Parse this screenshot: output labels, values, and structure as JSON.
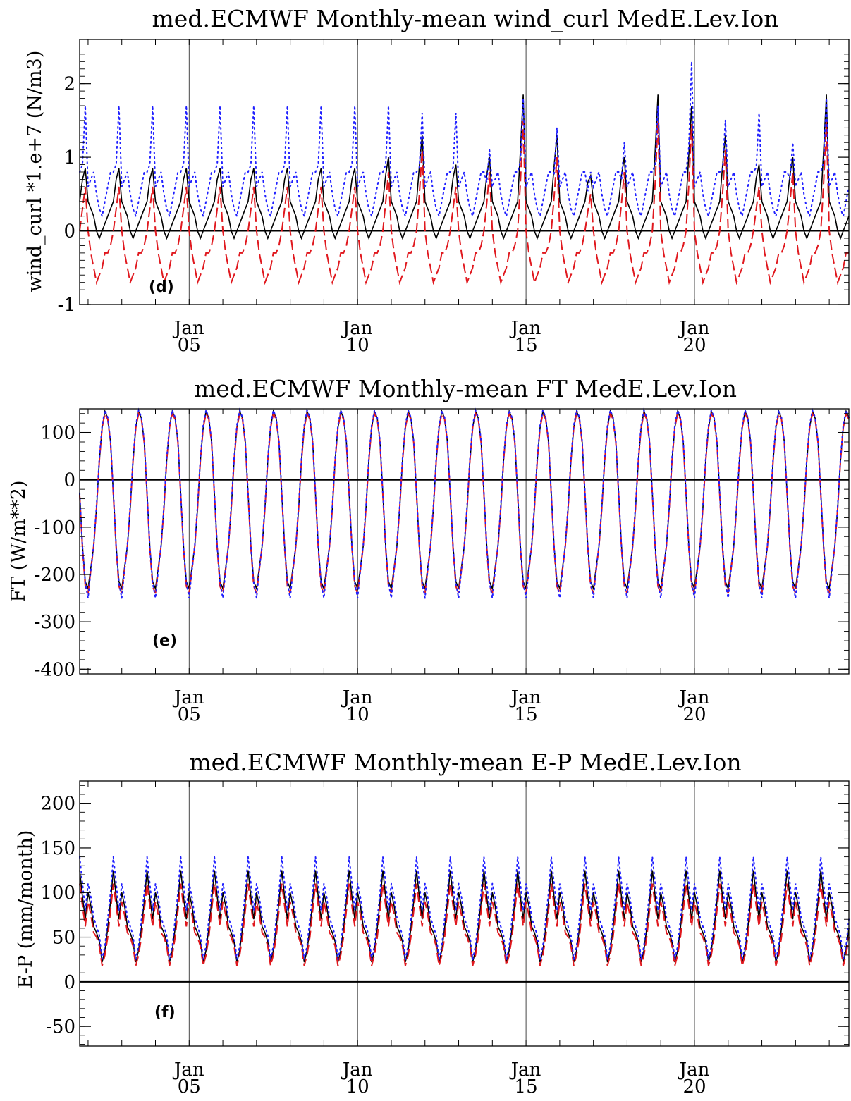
{
  "colors": {
    "black": "#000000",
    "red": "#e0181e",
    "blue": "#1f1fff"
  },
  "chart_data": [
    {
      "type": "line",
      "title": "med.ECMWF Monthly-mean wind_curl  MedE.Lev.Ion",
      "xlabel": "",
      "ylabel": "wind_curl *1.e+7 (N/m3)",
      "panel_label": "(d)",
      "x_range": [
        "2001-10",
        "2024-08"
      ],
      "ylim": [
        -1,
        2.6
      ],
      "y_ticks": [
        -1,
        0,
        1,
        2
      ],
      "y_tick_labels": [
        "-1",
        "0",
        "1",
        "2"
      ],
      "y_minor_step": 0.1,
      "x_tick_labels": [
        {
          "month": "Jan",
          "year": "05"
        },
        {
          "month": "Jan",
          "year": "10"
        },
        {
          "month": "Jan",
          "year": "15"
        },
        {
          "month": "Jan",
          "year": "20"
        }
      ],
      "zero_line": true,
      "series": [
        {
          "style": "solid",
          "color": "#000000",
          "climatology": [
            0.4,
            0.3,
            0.2,
            0.0,
            -0.1,
            0.0,
            0.1,
            0.2,
            0.3,
            0.4,
            0.7,
            0.85
          ],
          "year_peak": [
            0.85,
            0.85,
            0.85,
            0.85,
            0.85,
            0.85,
            0.85,
            0.85,
            0.85,
            1.0,
            1.3,
            0.9,
            1.0,
            1.85,
            1.3,
            0.75,
            1.0,
            1.85,
            1.7,
            1.3,
            0.9,
            1.0,
            1.85,
            1.7
          ]
        },
        {
          "style": "dashed",
          "color": "#e0181e",
          "climatology": [
            0.0,
            -0.3,
            -0.5,
            -0.7,
            -0.6,
            -0.5,
            -0.3,
            -0.3,
            -0.2,
            0.0,
            0.3,
            0.6
          ],
          "year_peak": [
            0.6,
            0.6,
            0.6,
            0.6,
            0.6,
            0.6,
            0.6,
            0.6,
            0.6,
            0.8,
            1.1,
            0.6,
            0.8,
            1.5,
            1.0,
            0.5,
            0.8,
            1.5,
            1.45,
            1.1,
            0.6,
            0.8,
            1.5,
            1.4
          ]
        },
        {
          "style": "dotted",
          "color": "#1f1fff",
          "climatology": [
            0.6,
            0.7,
            0.8,
            0.5,
            0.3,
            0.2,
            0.4,
            0.6,
            0.8,
            0.8,
            0.9,
            1.7
          ],
          "year_peak": [
            1.7,
            1.7,
            1.7,
            1.7,
            1.7,
            1.7,
            1.7,
            1.7,
            1.7,
            1.7,
            1.6,
            1.6,
            1.1,
            1.8,
            1.4,
            0.8,
            1.2,
            1.7,
            2.3,
            1.5,
            1.6,
            1.2,
            1.8,
            2.3
          ]
        }
      ]
    },
    {
      "type": "line",
      "title": "med.ECMWF Monthly-mean FT  MedE.Lev.Ion",
      "xlabel": "",
      "ylabel": "FT (W/m**2)",
      "panel_label": "(e)",
      "x_range": [
        "2001-10",
        "2024-08"
      ],
      "ylim": [
        -410,
        150
      ],
      "y_ticks": [
        -400,
        -300,
        -200,
        -100,
        0,
        100
      ],
      "y_tick_labels": [
        "-400",
        "-300",
        "-200",
        "-100",
        "0",
        "100"
      ],
      "y_minor_step": 20,
      "x_tick_labels": [
        {
          "month": "Jan",
          "year": "05"
        },
        {
          "month": "Jan",
          "year": "10"
        },
        {
          "month": "Jan",
          "year": "15"
        },
        {
          "month": "Jan",
          "year": "20"
        }
      ],
      "zero_line": true,
      "series": [
        {
          "style": "solid",
          "color": "#000000",
          "climatology": [
            -230,
            -185,
            -140,
            -60,
            40,
            110,
            145,
            130,
            80,
            -30,
            -140,
            -215
          ]
        },
        {
          "style": "dashed",
          "color": "#e0181e",
          "climatology": [
            -240,
            -190,
            -140,
            -60,
            40,
            110,
            140,
            128,
            78,
            -32,
            -145,
            -225
          ]
        },
        {
          "style": "dotted",
          "color": "#1f1fff",
          "climatology": [
            -250,
            -190,
            -138,
            -55,
            45,
            115,
            147,
            132,
            82,
            -28,
            -142,
            -218
          ]
        }
      ]
    },
    {
      "type": "line",
      "title": "med.ECMWF Monthly-mean E-P  MedE.Lev.Ion",
      "xlabel": "",
      "ylabel": "E-P (mm/month)",
      "panel_label": "(f)",
      "x_range": [
        "2001-10",
        "2024-08"
      ],
      "ylim": [
        -72,
        225
      ],
      "y_ticks": [
        -50,
        0,
        50,
        100,
        150,
        200
      ],
      "y_tick_labels": [
        "-50",
        "0",
        "50",
        "100",
        "150",
        "200"
      ],
      "y_minor_step": 10,
      "x_tick_labels": [
        {
          "month": "Jan",
          "year": "05"
        },
        {
          "month": "Jan",
          "year": "10"
        },
        {
          "month": "Jan",
          "year": "15"
        },
        {
          "month": "Jan",
          "year": "20"
        }
      ],
      "zero_line": true,
      "series": [
        {
          "style": "solid",
          "color": "#000000",
          "climatology": [
            100,
            85,
            62,
            55,
            45,
            22,
            35,
            60,
            90,
            125,
            95,
            70
          ]
        },
        {
          "style": "dashed",
          "color": "#e0181e",
          "climatology": [
            90,
            75,
            55,
            50,
            40,
            18,
            30,
            50,
            80,
            110,
            85,
            62
          ]
        },
        {
          "style": "dotted",
          "color": "#1f1fff",
          "climatology": [
            110,
            95,
            72,
            62,
            52,
            25,
            40,
            70,
            100,
            140,
            110,
            80
          ]
        }
      ]
    }
  ]
}
